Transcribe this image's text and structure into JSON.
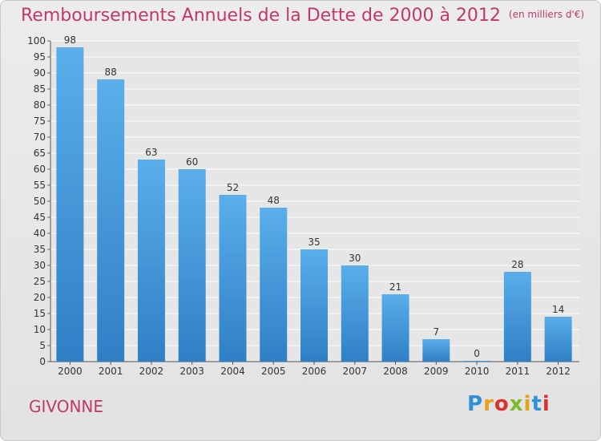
{
  "header": {
    "title": "Remboursements Annuels de la Dette de 2000 à 2012",
    "unit": "(en milliers d'€)"
  },
  "footer": {
    "commune": "GIVONNE",
    "logo_text": "Proxiti"
  },
  "colors": {
    "title": "#c0396a",
    "bar_top": "#5aaeea",
    "bar_bottom": "#2f7fc6",
    "grid": "#ffffff"
  },
  "chart_data": {
    "type": "bar",
    "categories": [
      "2000",
      "2001",
      "2002",
      "2003",
      "2004",
      "2005",
      "2006",
      "2007",
      "2008",
      "2009",
      "2010",
      "2011",
      "2012"
    ],
    "values": [
      98,
      88,
      63,
      60,
      52,
      48,
      35,
      30,
      21,
      7,
      0,
      28,
      14
    ],
    "ylim": [
      0,
      100
    ],
    "yticks": [
      0,
      5,
      10,
      15,
      20,
      25,
      30,
      35,
      40,
      45,
      50,
      55,
      60,
      65,
      70,
      75,
      80,
      85,
      90,
      95,
      100
    ],
    "grid": true
  }
}
